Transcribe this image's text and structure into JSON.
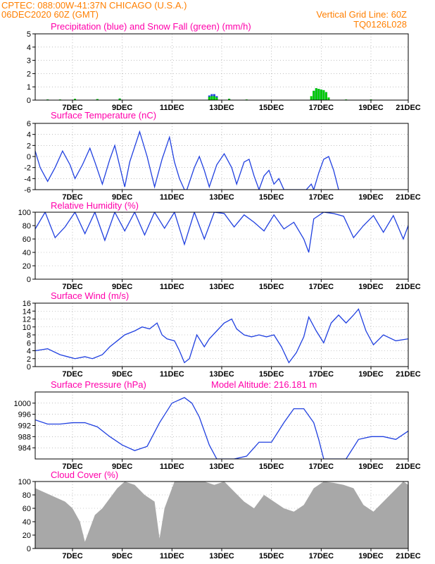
{
  "header": {
    "line1": "CPTEC:  088:00W-41:37N  CHICAGO (U.S.A.)",
    "line2": "06DEC2020 60Z (GMT)",
    "grid_note": "Vertical Grid Line: 60Z",
    "code": "TQ0126L028"
  },
  "colors": {
    "header": "#ff7f00",
    "title": "#ff00aa",
    "line": "#2040e0",
    "green": "#00cc00",
    "gray": "#a8a8a8"
  },
  "x_ticks": [
    "7DEC",
    "9DEC",
    "11DEC",
    "13DEC",
    "15DEC",
    "17DEC",
    "19DEC",
    "21DEC"
  ],
  "chart_data": [
    {
      "type": "bar",
      "title": "Precipitation (blue) and Snow Fall (green) (mm/h)",
      "ylim": [
        0,
        5
      ],
      "yticks": [
        "0",
        "1",
        "2",
        "3",
        "4",
        "5"
      ],
      "x_range": [
        6.0,
        21.0
      ],
      "series": [
        {
          "name": "Precipitation",
          "color": "blue",
          "x": [
            6.5,
            8.5,
            9.4,
            13.0,
            13.1,
            13.2,
            13.3,
            13.8,
            17.2,
            17.3,
            17.4,
            17.5,
            17.6,
            17.7
          ],
          "values": [
            0.05,
            0.08,
            0.12,
            0.35,
            0.45,
            0.45,
            0.3,
            0.1,
            0.7,
            0.9,
            0.85,
            0.8,
            0.75,
            0.6
          ]
        },
        {
          "name": "Snow Fall",
          "color": "green",
          "x": [
            6.5,
            7.0,
            7.6,
            8.5,
            9.4,
            13.0,
            13.1,
            13.2,
            13.3,
            13.8,
            14.5,
            17.1,
            17.2,
            17.3,
            17.4,
            17.5,
            17.6,
            17.7,
            17.8,
            18.5,
            19.5
          ],
          "values": [
            0.05,
            0.05,
            0.1,
            0.08,
            0.12,
            0.25,
            0.3,
            0.3,
            0.2,
            0.1,
            0.05,
            0.3,
            0.7,
            0.9,
            0.85,
            0.8,
            0.75,
            0.6,
            0.2,
            0.05,
            0.05
          ]
        }
      ]
    },
    {
      "type": "line",
      "title": "Surface Temperature (nC)",
      "ylim": [
        -6,
        6
      ],
      "yticks": [
        "-6",
        "-4",
        "-2",
        "0",
        "2",
        "4",
        "6"
      ],
      "x_range": [
        6.0,
        21.0
      ],
      "series": [
        {
          "name": "",
          "x": [
            6.0,
            6.2,
            6.5,
            6.8,
            7.1,
            7.4,
            7.6,
            7.9,
            8.2,
            8.4,
            8.7,
            9.0,
            9.2,
            9.6,
            9.8,
            10.2,
            10.5,
            10.8,
            11.1,
            11.4,
            11.6,
            11.8,
            12.0,
            12.1,
            12.4,
            12.6,
            12.8,
            13.0,
            13.3,
            13.6,
            13.9,
            14.1,
            14.4,
            14.6,
            14.8,
            15.0,
            15.2,
            15.4,
            15.6,
            15.8,
            16.0,
            16.2,
            16.5,
            16.7,
            16.9,
            17.1,
            17.2,
            17.4,
            17.6,
            17.8,
            18.0,
            18.2
          ],
          "values": [
            1.0,
            -2.0,
            -4.5,
            -2.0,
            1.0,
            -1.5,
            -4.0,
            -1.5,
            1.5,
            -1.0,
            -5.0,
            -0.5,
            2.0,
            -5.5,
            -1.0,
            4.5,
            0.0,
            -5.5,
            -0.5,
            3.5,
            -1.0,
            -4.0,
            -6.0,
            -6.0,
            -2.0,
            0.0,
            -2.5,
            -5.5,
            -1.5,
            0.5,
            -2.0,
            -5.0,
            -1.0,
            -0.5,
            -3.5,
            -6.0,
            -3.5,
            -2.5,
            -5.0,
            -4.0,
            -6.0,
            -6.0,
            -6.0,
            -6.0,
            -6.0,
            -5.0,
            -6.0,
            -3.0,
            -0.5,
            0.0,
            -2.5,
            -6.0
          ]
        }
      ]
    },
    {
      "type": "line",
      "title": "Relative Humidity (%)",
      "ylim": [
        0,
        100
      ],
      "yticks": [
        "0",
        "20",
        "40",
        "60",
        "80",
        "100"
      ],
      "x_range": [
        6.0,
        21.0
      ],
      "series": [
        {
          "name": "",
          "x": [
            6.0,
            6.4,
            6.8,
            7.2,
            7.6,
            8.0,
            8.4,
            8.8,
            9.2,
            9.6,
            10.0,
            10.4,
            10.8,
            11.2,
            11.6,
            12.0,
            12.4,
            12.8,
            13.2,
            13.6,
            14.0,
            14.4,
            14.8,
            15.2,
            15.6,
            16.0,
            16.4,
            16.8,
            17.0,
            17.2,
            17.6,
            18.0,
            18.4,
            18.8,
            19.2,
            19.6,
            20.0,
            20.4,
            20.8,
            21.0
          ],
          "values": [
            75,
            100,
            62,
            78,
            100,
            68,
            100,
            58,
            100,
            72,
            100,
            66,
            100,
            76,
            100,
            52,
            100,
            60,
            100,
            98,
            78,
            96,
            85,
            72,
            96,
            75,
            85,
            60,
            40,
            90,
            100,
            98,
            94,
            62,
            80,
            95,
            70,
            95,
            60,
            80
          ]
        }
      ]
    },
    {
      "type": "line",
      "title": "Surface Wind (m/s)",
      "ylim": [
        0,
        16
      ],
      "yticks": [
        "0",
        "2",
        "4",
        "6",
        "8",
        "10",
        "12",
        "14",
        "16"
      ],
      "x_range": [
        6.0,
        21.0
      ],
      "series": [
        {
          "name": "",
          "x": [
            6.0,
            6.5,
            7.0,
            7.3,
            7.6,
            8.0,
            8.3,
            8.7,
            9.0,
            9.3,
            9.6,
            10.0,
            10.3,
            10.6,
            10.9,
            11.1,
            11.3,
            11.6,
            11.8,
            12.0,
            12.2,
            12.5,
            12.8,
            13.0,
            13.3,
            13.6,
            13.9,
            14.1,
            14.4,
            14.7,
            15.0,
            15.3,
            15.6,
            15.9,
            16.2,
            16.5,
            16.8,
            17.0,
            17.3,
            17.6,
            17.9,
            18.2,
            18.5,
            18.8,
            19.0,
            19.3,
            19.6,
            20.0,
            20.5,
            21.0
          ],
          "values": [
            4.0,
            4.5,
            3.0,
            2.5,
            2.0,
            2.5,
            2.0,
            3.0,
            5.0,
            6.5,
            8.0,
            9.0,
            10.0,
            9.5,
            11.0,
            8.0,
            7.0,
            6.5,
            4.0,
            1.0,
            2.0,
            8.0,
            5.0,
            7.0,
            9.0,
            11.0,
            12.0,
            9.5,
            8.0,
            7.5,
            8.0,
            7.5,
            8.0,
            5.0,
            1.0,
            3.5,
            7.5,
            12.5,
            9.0,
            6.0,
            11.0,
            13.0,
            11.0,
            13.0,
            14.5,
            9.0,
            5.5,
            8.0,
            6.5,
            7.0
          ]
        }
      ]
    },
    {
      "type": "line",
      "title": "Surface Pressure (hPa)",
      "annotation": "Model Altitude: 216.181 m",
      "ylim": [
        980,
        1004
      ],
      "yticks": [
        "984",
        "988",
        "992",
        "996",
        "1000"
      ],
      "x_range": [
        6.0,
        21.0
      ],
      "series": [
        {
          "name": "",
          "x": [
            6.0,
            6.5,
            7.0,
            7.5,
            8.0,
            8.5,
            9.0,
            9.5,
            10.0,
            10.5,
            11.0,
            11.5,
            12.0,
            12.3,
            12.6,
            13.0,
            13.3,
            13.6,
            14.0,
            14.5,
            15.0,
            15.5,
            16.0,
            16.4,
            16.8,
            17.2,
            17.4,
            17.6,
            18.0,
            18.5,
            19.0,
            19.5,
            20.0,
            20.5,
            21.0
          ],
          "values": [
            994,
            992.5,
            992.5,
            993,
            993,
            991.5,
            988,
            985,
            983,
            984.5,
            993,
            1000,
            1002,
            1000,
            995,
            985,
            980,
            980,
            980,
            981,
            986,
            986,
            993,
            998,
            998,
            993,
            987,
            980,
            980,
            980,
            987,
            988,
            988,
            987,
            990
          ]
        }
      ]
    },
    {
      "type": "area",
      "title": "Cloud Cover (%)",
      "ylim": [
        0,
        100
      ],
      "yticks": [
        "0",
        "20",
        "40",
        "60",
        "80",
        "100"
      ],
      "x_range": [
        6.0,
        21.0
      ],
      "series": [
        {
          "name": "",
          "x": [
            6.0,
            6.3,
            6.6,
            6.9,
            7.2,
            7.5,
            7.8,
            8.0,
            8.2,
            8.4,
            8.7,
            9.0,
            9.3,
            9.6,
            10.0,
            10.4,
            10.8,
            11.0,
            11.2,
            11.6,
            12.0,
            12.4,
            12.8,
            13.2,
            13.6,
            14.0,
            14.4,
            14.8,
            15.2,
            15.6,
            16.0,
            16.4,
            16.8,
            17.2,
            17.6,
            18.0,
            18.4,
            18.8,
            19.2,
            19.6,
            20.0,
            20.4,
            20.8,
            21.0
          ],
          "values": [
            90,
            85,
            80,
            75,
            70,
            60,
            40,
            10,
            30,
            50,
            60,
            75,
            90,
            100,
            95,
            80,
            70,
            15,
            60,
            100,
            100,
            100,
            100,
            95,
            100,
            85,
            70,
            60,
            80,
            70,
            60,
            55,
            65,
            90,
            100,
            98,
            95,
            90,
            65,
            55,
            70,
            85,
            100,
            95
          ]
        }
      ]
    }
  ]
}
